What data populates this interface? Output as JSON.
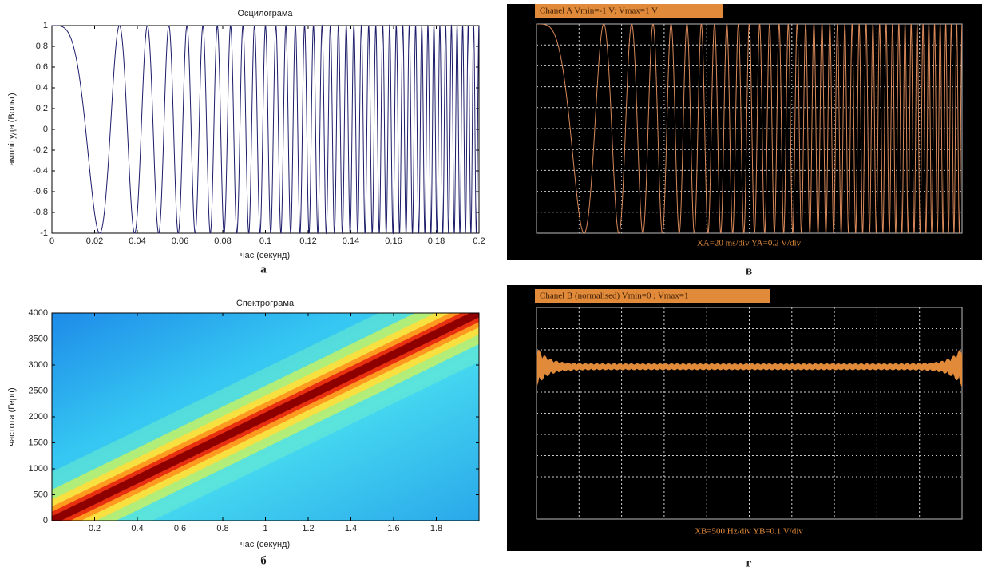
{
  "chart_data": [
    {
      "type": "line",
      "title": "Осцилограма",
      "xlabel": "час (секунд)",
      "ylabel": "амплітуда (Вольт)",
      "caption": "а",
      "color": "#1c1c6a",
      "xlim": [
        0,
        0.2
      ],
      "xticks": [
        0,
        0.02,
        0.04,
        0.06,
        0.08,
        0.1,
        0.12,
        0.14,
        0.16,
        0.18,
        0.2
      ],
      "ylim": [
        -1,
        1
      ],
      "yticks": [
        -1,
        -0.8,
        -0.6,
        -0.4,
        -0.2,
        0,
        0.2,
        0.4,
        0.6,
        0.8,
        1
      ]
    },
    {
      "type": "heatmap",
      "title": "Спектрограма",
      "xlabel": "час (секунд)",
      "ylabel": "частота (Герц)",
      "caption": "б",
      "xlim": [
        0,
        2
      ],
      "xticks": [
        0.2,
        0.4,
        0.6,
        0.8,
        1,
        1.2,
        1.4,
        1.6,
        1.8
      ],
      "ylim": [
        0,
        4000
      ],
      "yticks": [
        0,
        500,
        1000,
        1500,
        2000,
        2500,
        3000,
        3500,
        4000
      ]
    },
    {
      "type": "scope",
      "header": "Chanel A Vmin=-1 V; Vmax=1 V",
      "footer": "XA=20 ms/div YA=0.2 V/div",
      "caption": "в",
      "color": "#d9895a"
    },
    {
      "type": "scope-spectrum",
      "header": "Chanel B (normalised) Vmin=0 ; Vmax=1",
      "footer": "XB=500 Hz/div YB=0.1 V/div",
      "caption": "г",
      "color": "#e08a3a"
    }
  ]
}
